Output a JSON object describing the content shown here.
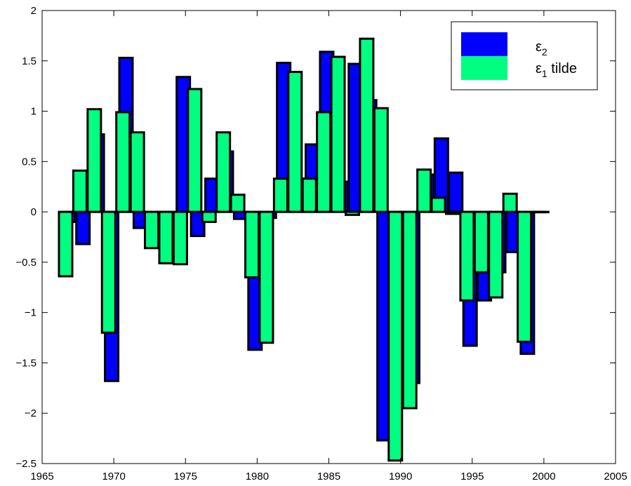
{
  "chart_data": {
    "type": "bar",
    "xlim": [
      1965,
      2005
    ],
    "ylim": [
      -2.5,
      2
    ],
    "xticks": [
      1965,
      1970,
      1975,
      1980,
      1985,
      1990,
      1995,
      2000,
      2005
    ],
    "yticks": [
      -2.5,
      -2,
      -1.5,
      -1,
      -0.5,
      0,
      0.5,
      1,
      1.5,
      2
    ],
    "xtick_labels": [
      "1965",
      "1970",
      "1975",
      "1980",
      "1985",
      "1990",
      "1995",
      "2000",
      "2005"
    ],
    "ytick_labels": [
      "−2.5",
      "−2",
      "−1.5",
      "−1",
      "−0.5",
      "0",
      "0.5",
      "1",
      "1.5",
      "2"
    ],
    "grid": false,
    "legend_position": "top-right",
    "x": [
      1967,
      1968,
      1969,
      1970,
      1971,
      1972,
      1973,
      1974,
      1975,
      1976,
      1977,
      1978,
      1979,
      1980,
      1981,
      1982,
      1983,
      1984,
      1985,
      1986,
      1987,
      1988,
      1989,
      1990,
      1991,
      1992,
      1993,
      1994,
      1995,
      1996,
      1997,
      1998,
      1999,
      2000
    ],
    "series": [
      {
        "name": "ε₂",
        "legend_main": "ε",
        "legend_sub": "2",
        "legend_rest": "",
        "color": "#0000ff",
        "values": [
          -0.1,
          -0.32,
          0.77,
          -1.68,
          1.53,
          -0.16,
          -0.35,
          -0.51,
          1.34,
          -0.24,
          0.33,
          0.6,
          -0.07,
          -1.37,
          -0.06,
          1.48,
          0.33,
          0.67,
          1.59,
          0.3,
          1.47,
          1.11,
          -2.27,
          -0.6,
          -1.7,
          0.37,
          0.73,
          0.39,
          -1.33,
          -0.88,
          -0.6,
          -0.4,
          -1.41,
          0.0
        ]
      },
      {
        "name": "ε₁ tilde",
        "legend_main": "ε",
        "legend_sub": "1",
        "legend_rest": " tilde",
        "color": "#00ff80",
        "values": [
          -0.64,
          0.41,
          1.02,
          -1.2,
          0.99,
          0.79,
          -0.36,
          -0.51,
          -0.52,
          1.22,
          -0.1,
          0.79,
          0.17,
          -0.65,
          -1.3,
          0.33,
          1.39,
          0.33,
          0.99,
          1.54,
          -0.03,
          1.72,
          1.03,
          -2.47,
          -1.95,
          0.42,
          0.14,
          -0.02,
          -0.88,
          -0.6,
          -0.85,
          0.18,
          -1.29,
          0.0
        ]
      }
    ]
  }
}
